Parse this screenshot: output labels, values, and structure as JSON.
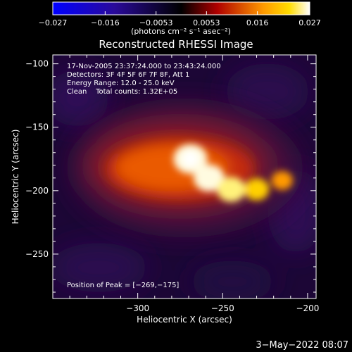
{
  "chart_data": {
    "type": "heatmap",
    "title": "Reconstructed RHESSI Image",
    "xlabel": "Heliocentric X (arcsec)",
    "ylabel": "Heliocentric Y (arcsec)",
    "xlim": [
      -350,
      -195
    ],
    "ylim": [
      -285,
      -93
    ],
    "xticks": [
      -300,
      -250,
      -200
    ],
    "xtick_labels": [
      "−300",
      "−250",
      "−200"
    ],
    "yticks": [
      -100,
      -150,
      -200,
      -250
    ],
    "ytick_labels": [
      "−100",
      "−150",
      "−200",
      "−250"
    ],
    "colorbar": {
      "min": -0.027,
      "max": 0.027,
      "ticks": [
        -0.027,
        -0.016,
        -0.0053,
        0.0053,
        0.016,
        0.027
      ],
      "tick_labels": [
        "−0.027",
        "−0.016",
        "−0.0053",
        "0.0053",
        "0.016",
        "0.027"
      ],
      "unit_label": "(photons cm⁻² s⁻¹ asec⁻²)"
    },
    "annotations": [
      "17-Nov-2005 23:37:24.000 to 23:43:24.000",
      "Detectors: 3F 4F 5F 6F 7F 8F, Att 1",
      "Energy Range: 12.0 - 25.0 keV",
      "Clean    Total counts: 1.32E+05"
    ],
    "peak_label": "Position of Peak = [−269,−175]",
    "peak_position": [
      -269,
      -175
    ],
    "sources": [
      {
        "x": -269,
        "y": -175,
        "intensity": 0.027
      },
      {
        "x": -258,
        "y": -190,
        "intensity": 0.023
      },
      {
        "x": -245,
        "y": -199,
        "intensity": 0.02
      },
      {
        "x": -230,
        "y": -199,
        "intensity": 0.015
      },
      {
        "x": -215,
        "y": -192,
        "intensity": 0.01
      }
    ],
    "grid": false,
    "timestamp": "3−May−2022 08:07"
  }
}
